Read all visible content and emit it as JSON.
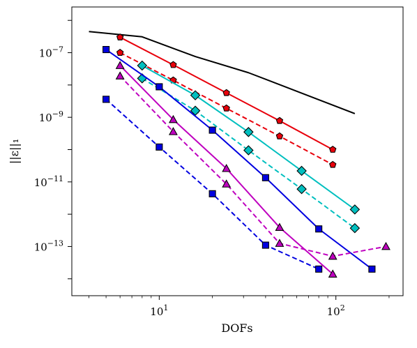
{
  "chart_data": {
    "type": "line",
    "xscale": "log",
    "yscale": "log",
    "xlim": [
      3.2,
      240
    ],
    "ylim": [
      3e-15,
      2.6e-06
    ],
    "xlabel": "DOFs",
    "ylabel": "||ε||₁",
    "x_ticks": [
      {
        "value": 10,
        "label": "10",
        "exp": "1"
      },
      {
        "value": 100,
        "label": "10",
        "exp": "2"
      }
    ],
    "y_ticks": [
      {
        "value": 1e-13,
        "label": "10",
        "exp": "−13"
      },
      {
        "value": 1e-11,
        "label": "10",
        "exp": "−11"
      },
      {
        "value": 1e-09,
        "label": "10",
        "exp": "−9"
      },
      {
        "value": 1e-07,
        "label": "10",
        "exp": "−7"
      }
    ],
    "grid": false,
    "legend": "none",
    "series": [
      {
        "color": "#000000",
        "dash": false,
        "marker": "none",
        "x": [
          4,
          8,
          16,
          32,
          64,
          128
        ],
        "y": [
          4.5e-07,
          3.1e-07,
          7.6e-08,
          2.4e-08,
          5.6e-09,
          1.3e-09
        ]
      },
      {
        "color": "#e8000b",
        "dash": false,
        "marker": "pentagon",
        "x": [
          6,
          12,
          24,
          48,
          96
        ],
        "y": [
          3e-07,
          4.2e-08,
          5.7e-09,
          7.8e-10,
          1e-10
        ]
      },
      {
        "color": "#e8000b",
        "dash": true,
        "marker": "pentagon",
        "x": [
          6,
          12,
          24,
          48,
          96
        ],
        "y": [
          1e-07,
          1.4e-08,
          1.9e-09,
          2.6e-10,
          3.4e-11
        ]
      },
      {
        "color": "#00bfbf",
        "dash": false,
        "marker": "diamond",
        "x": [
          8,
          16,
          32,
          64,
          128
        ],
        "y": [
          4e-08,
          4.8e-09,
          3.5e-10,
          2.2e-11,
          1.4e-12
        ]
      },
      {
        "color": "#00bfbf",
        "dash": true,
        "marker": "diamond",
        "x": [
          8,
          16,
          32,
          64,
          128
        ],
        "y": [
          1.6e-08,
          1.6e-09,
          9.5e-11,
          6e-12,
          3.7e-13
        ]
      },
      {
        "color": "#0000e0",
        "dash": false,
        "marker": "square",
        "x": [
          5,
          10,
          20,
          40,
          80,
          160
        ],
        "y": [
          1.25e-07,
          8.8e-09,
          4e-10,
          1.35e-11,
          3.5e-13,
          2e-14
        ]
      },
      {
        "color": "#0000e0",
        "dash": true,
        "marker": "square",
        "x": [
          5,
          10,
          20,
          40,
          80
        ],
        "y": [
          3.6e-09,
          1.2e-10,
          4.3e-12,
          1.1e-13,
          2e-14
        ]
      },
      {
        "color": "#bf00bf",
        "dash": false,
        "marker": "triangle",
        "x": [
          6,
          12,
          24,
          48,
          96
        ],
        "y": [
          4e-08,
          8.5e-10,
          2.6e-11,
          3.9e-13,
          1.4e-14
        ]
      },
      {
        "color": "#bf00bf",
        "dash": true,
        "marker": "triangle",
        "x": [
          6,
          12,
          24,
          48,
          96,
          192
        ],
        "y": [
          1.9e-08,
          3.6e-10,
          8.6e-12,
          1.25e-13,
          5e-14,
          1e-13
        ]
      }
    ]
  }
}
